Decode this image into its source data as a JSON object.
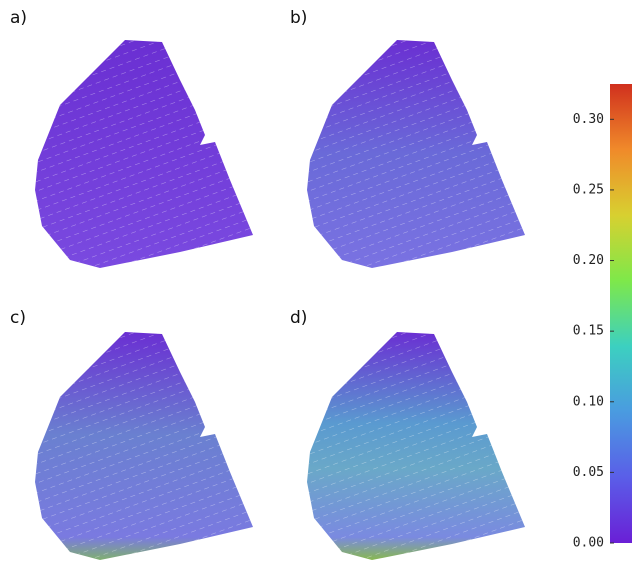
{
  "chart_data": {
    "type": "colorbar-figure",
    "panels": [
      {
        "label": "a)"
      },
      {
        "label": "b)"
      },
      {
        "label": "c)"
      },
      {
        "label": "d)"
      }
    ],
    "colorbar": {
      "lim": [
        0,
        0.325
      ],
      "ticks": [
        {
          "value": 0,
          "label": "0.00"
        },
        {
          "value": 0.05,
          "label": "0.05"
        },
        {
          "value": 0.1,
          "label": "0.10"
        },
        {
          "value": 0.15,
          "label": "0.15"
        },
        {
          "value": 0.2,
          "label": "0.20"
        },
        {
          "value": 0.25,
          "label": "0.25"
        },
        {
          "value": 0.3,
          "label": "0.30"
        }
      ],
      "colors": [
        "#6a1fd6",
        "#5a5ee8",
        "#4a9be0",
        "#3cd0c0",
        "#7ee84a",
        "#d8d030",
        "#f08a2a",
        "#d0301e"
      ]
    }
  }
}
